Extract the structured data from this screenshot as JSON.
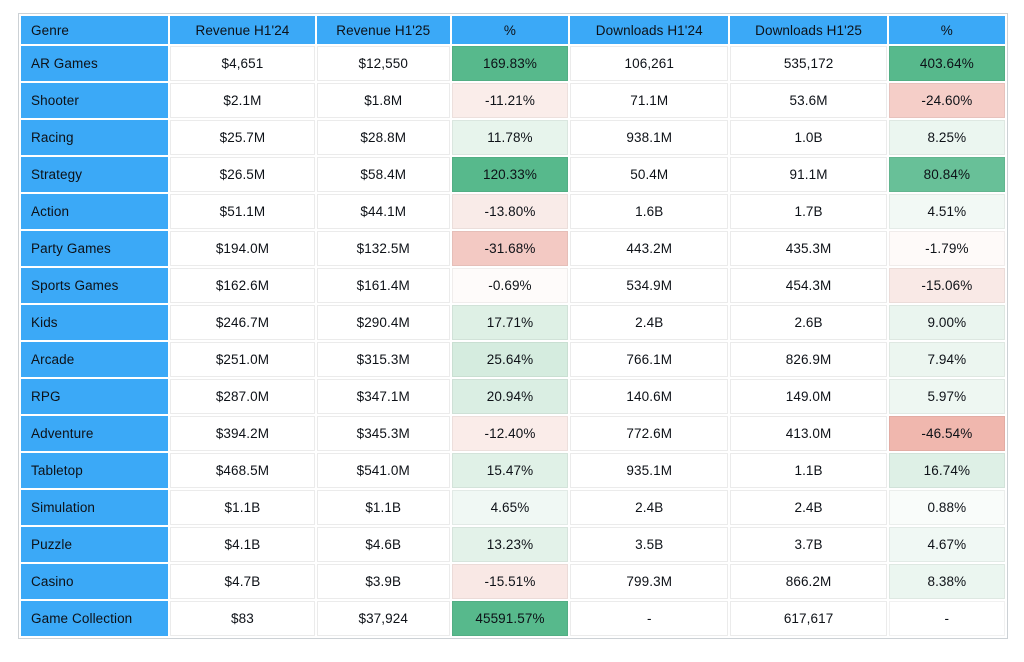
{
  "colors": {
    "header_bg": "#3BA9F7",
    "genre_col_bg": "#3BA9F7",
    "text": "#0d1117",
    "table_border": "#ccd1d5",
    "strong_green": "#57B98C",
    "strong_pink": "#F0B7AE"
  },
  "table": {
    "headers": [
      "Genre",
      "Revenue H1'24",
      "Revenue H1'25",
      "%",
      "Downloads H1'24",
      "Downloads H1'25",
      "%"
    ],
    "rows": [
      {
        "genre": "AR Games",
        "rev24": "$4,651",
        "rev25": "$12,550",
        "rev_pct": "169.83%",
        "rev_pct_bg": "#57B98C",
        "dl24": "106,261",
        "dl25": "535,172",
        "dl_pct": "403.64%",
        "dl_pct_bg": "#57B98C"
      },
      {
        "genre": "Shooter",
        "rev24": "$2.1M",
        "rev25": "$1.8M",
        "rev_pct": "-11.21%",
        "rev_pct_bg": "#FAEDEA",
        "dl24": "71.1M",
        "dl25": "53.6M",
        "dl_pct": "-24.60%",
        "dl_pct_bg": "#F5CEC8"
      },
      {
        "genre": "Racing",
        "rev24": "$25.7M",
        "rev25": "$28.8M",
        "rev_pct": "11.78%",
        "rev_pct_bg": "#E7F4EC",
        "dl24": "938.1M",
        "dl25": "1.0B",
        "dl_pct": "8.25%",
        "dl_pct_bg": "#EBF6F0"
      },
      {
        "genre": "Strategy",
        "rev24": "$26.5M",
        "rev25": "$58.4M",
        "rev_pct": "120.33%",
        "rev_pct_bg": "#57B98C",
        "dl24": "50.4M",
        "dl25": "91.1M",
        "dl_pct": "80.84%",
        "dl_pct_bg": "#68C098"
      },
      {
        "genre": "Action",
        "rev24": "$51.1M",
        "rev25": "$44.1M",
        "rev_pct": "-13.80%",
        "rev_pct_bg": "#F9EBE8",
        "dl24": "1.6B",
        "dl25": "1.7B",
        "dl_pct": "4.51%",
        "dl_pct_bg": "#F2F9F5"
      },
      {
        "genre": "Party Games",
        "rev24": "$194.0M",
        "rev25": "$132.5M",
        "rev_pct": "-31.68%",
        "rev_pct_bg": "#F3C9C3",
        "dl24": "443.2M",
        "dl25": "435.3M",
        "dl_pct": "-1.79%",
        "dl_pct_bg": "#FEFAF9"
      },
      {
        "genre": "Sports Games",
        "rev24": "$162.6M",
        "rev25": "$161.4M",
        "rev_pct": "-0.69%",
        "rev_pct_bg": "#FEFBFA",
        "dl24": "534.9M",
        "dl25": "454.3M",
        "dl_pct": "-15.06%",
        "dl_pct_bg": "#F9E9E6"
      },
      {
        "genre": "Kids",
        "rev24": "$246.7M",
        "rev25": "$290.4M",
        "rev_pct": "17.71%",
        "rev_pct_bg": "#DEF0E5",
        "dl24": "2.4B",
        "dl25": "2.6B",
        "dl_pct": "9.00%",
        "dl_pct_bg": "#EAF5EF"
      },
      {
        "genre": "Arcade",
        "rev24": "$251.0M",
        "rev25": "$315.3M",
        "rev_pct": "25.64%",
        "rev_pct_bg": "#D5ECDF",
        "dl24": "766.1M",
        "dl25": "826.9M",
        "dl_pct": "7.94%",
        "dl_pct_bg": "#ECF6F0"
      },
      {
        "genre": "RPG",
        "rev24": "$287.0M",
        "rev25": "$347.1M",
        "rev_pct": "20.94%",
        "rev_pct_bg": "#DAEEE3",
        "dl24": "140.6M",
        "dl25": "149.0M",
        "dl_pct": "5.97%",
        "dl_pct_bg": "#EEF7F2"
      },
      {
        "genre": "Adventure",
        "rev24": "$394.2M",
        "rev25": "$345.3M",
        "rev_pct": "-12.40%",
        "rev_pct_bg": "#FAECE9",
        "dl24": "772.6M",
        "dl25": "413.0M",
        "dl_pct": "-46.54%",
        "dl_pct_bg": "#F0B7AE"
      },
      {
        "genre": "Tabletop",
        "rev24": "$468.5M",
        "rev25": "$541.0M",
        "rev_pct": "15.47%",
        "rev_pct_bg": "#E0F1E7",
        "dl24": "935.1M",
        "dl25": "1.1B",
        "dl_pct": "16.74%",
        "dl_pct_bg": "#DEF0E6"
      },
      {
        "genre": "Simulation",
        "rev24": "$1.1B",
        "rev25": "$1.1B",
        "rev_pct": "4.65%",
        "rev_pct_bg": "#F0F8F4",
        "dl24": "2.4B",
        "dl25": "2.4B",
        "dl_pct": "0.88%",
        "dl_pct_bg": "#F9FCFA"
      },
      {
        "genre": "Puzzle",
        "rev24": "$4.1B",
        "rev25": "$4.6B",
        "rev_pct": "13.23%",
        "rev_pct_bg": "#E3F2E9",
        "dl24": "3.5B",
        "dl25": "3.7B",
        "dl_pct": "4.67%",
        "dl_pct_bg": "#F0F8F4"
      },
      {
        "genre": "Casino",
        "rev24": "$4.7B",
        "rev25": "$3.9B",
        "rev_pct": "-15.51%",
        "rev_pct_bg": "#F9E8E5",
        "dl24": "799.3M",
        "dl25": "866.2M",
        "dl_pct": "8.38%",
        "dl_pct_bg": "#EBF6F0"
      },
      {
        "genre": "Game Collection",
        "rev24": "$83",
        "rev25": "$37,924",
        "rev_pct": "45591.57%",
        "rev_pct_bg": "#57B98C",
        "dl24": "-",
        "dl25": "617,617",
        "dl_pct": "-",
        "dl_pct_bg": "#FFFFFF"
      }
    ]
  }
}
